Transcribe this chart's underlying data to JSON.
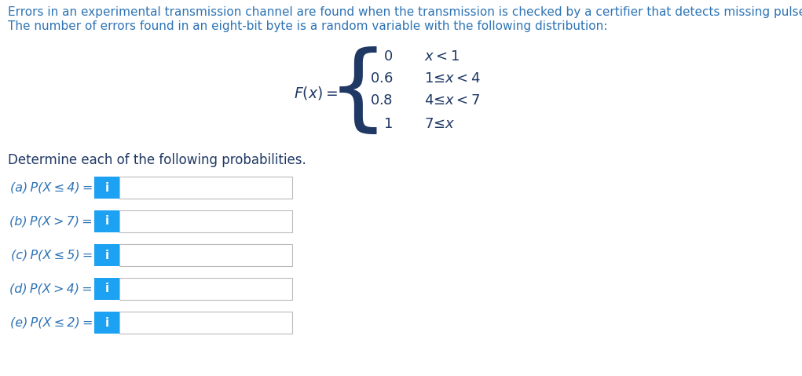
{
  "background_color": "#ffffff",
  "header_text_line1": "Errors in an experimental transmission channel are found when the transmission is checked by a certifier that detects missing pulses.",
  "header_text_line2": "The number of errors found in an eight-bit byte is a random variable with the following distribution:",
  "header_color": "#2e74b5",
  "header_fontsize": 11.0,
  "piecewise_lines": [
    [
      "0",
      "x < 1"
    ],
    [
      "0.6",
      "1 ≤ x < 4"
    ],
    [
      "0.8",
      "4 ≤ x < 7"
    ],
    [
      "1",
      "7 ≤ x"
    ]
  ],
  "determine_text": "Determine each of the following probabilities.",
  "determine_color": "#1f3864",
  "determine_fontsize": 12.0,
  "questions": [
    "(a) P(X ≤ 4) =",
    "(b) P(X > 7) =",
    "(c) P(X ≤ 5) =",
    "(d) P(X > 4) =",
    "(e) P(X ≤ 2) ="
  ],
  "question_color": "#2e74b5",
  "question_fontsize": 11.5,
  "box_color": "#1da1f2",
  "box_text": "i",
  "box_text_color": "#ffffff",
  "input_box_color": "#ffffff",
  "input_border_color": "#bbbbbb",
  "math_color": "#1f3864",
  "fx_color": "#1f3864"
}
